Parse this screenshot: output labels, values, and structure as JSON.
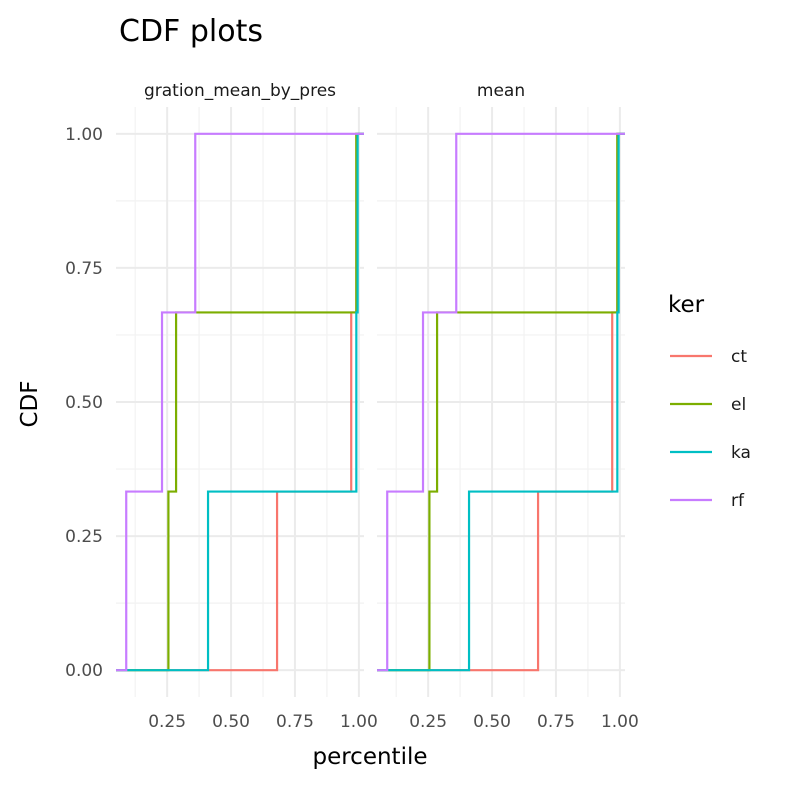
{
  "chart_data": {
    "type": "line",
    "step": true,
    "title": "CDF plots",
    "xlabel": "percentile",
    "ylabel": "CDF",
    "xlim": [
      0.05,
      1.02
    ],
    "ylim": [
      -0.05,
      1.05
    ],
    "x_ticks": [
      0.25,
      0.5,
      0.75,
      1.0
    ],
    "x_tick_labels": [
      "0.25",
      "0.50",
      "0.75",
      "1.00"
    ],
    "y_ticks": [
      0.0,
      0.25,
      0.5,
      0.75,
      1.0
    ],
    "y_tick_labels": [
      "0.00",
      "0.25",
      "0.50",
      "0.75",
      "1.00"
    ],
    "grid": true,
    "legend": {
      "title": "ker",
      "position": "right"
    },
    "series_colors": {
      "ct": "#F8766D",
      "el": "#7CAE00",
      "ka": "#00BFC4",
      "rf": "#C77CFF"
    },
    "panels": [
      {
        "strip_label": "gration_mean_by_pres",
        "series": [
          {
            "name": "ct",
            "x": [
              0.68,
              0.97,
              0.99
            ],
            "y": [
              0.333,
              0.667,
              1.0
            ]
          },
          {
            "name": "el",
            "x": [
              0.255,
              0.285,
              0.99
            ],
            "y": [
              0.333,
              0.667,
              1.0
            ]
          },
          {
            "name": "ka",
            "x": [
              0.41,
              0.99,
              0.995
            ],
            "y": [
              0.333,
              0.667,
              1.0
            ]
          },
          {
            "name": "rf",
            "x": [
              0.09,
              0.23,
              0.36
            ],
            "y": [
              0.333,
              0.667,
              1.0
            ]
          }
        ]
      },
      {
        "strip_label": "mean",
        "series": [
          {
            "name": "ct",
            "x": [
              0.68,
              0.97,
              0.99
            ],
            "y": [
              0.333,
              0.667,
              1.0
            ]
          },
          {
            "name": "el",
            "x": [
              0.255,
              0.285,
              0.99
            ],
            "y": [
              0.333,
              0.667,
              1.0
            ]
          },
          {
            "name": "ka",
            "x": [
              0.41,
              0.99,
              0.995
            ],
            "y": [
              0.333,
              0.667,
              1.0
            ]
          },
          {
            "name": "rf",
            "x": [
              0.09,
              0.23,
              0.36
            ],
            "y": [
              0.333,
              0.667,
              1.0
            ]
          }
        ]
      }
    ]
  }
}
